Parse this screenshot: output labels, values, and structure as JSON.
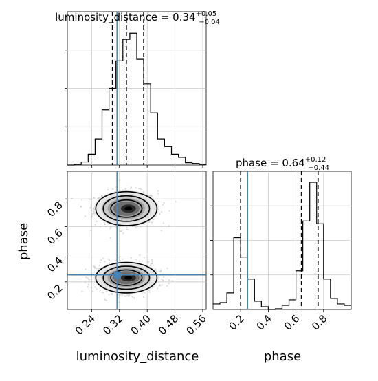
{
  "chart_data": {
    "type": "corner",
    "parameters": [
      "luminosity_distance",
      "phase"
    ],
    "truths": {
      "luminosity_distance": 0.313,
      "phase": 0.25
    },
    "panels": [
      {
        "id": "ld-hist",
        "type": "histogram",
        "title_name": "luminosity_distance",
        "title_median": "0.34",
        "title_plus": "+0.05",
        "title_minus": "−0.04",
        "xlim": [
          0.17,
          0.57
        ],
        "ylim": [
          0,
          1.0
        ],
        "bin_edges": [
          0.17,
          0.19,
          0.21,
          0.23,
          0.25,
          0.27,
          0.29,
          0.31,
          0.33,
          0.35,
          0.37,
          0.39,
          0.41,
          0.43,
          0.45,
          0.47,
          0.49,
          0.51,
          0.53,
          0.55,
          0.57
        ],
        "counts": [
          0.0,
          0.005,
          0.02,
          0.07,
          0.17,
          0.36,
          0.5,
          0.68,
          0.82,
          0.86,
          0.69,
          0.53,
          0.34,
          0.17,
          0.12,
          0.07,
          0.05,
          0.015,
          0.01,
          0.005
        ],
        "quantile_lines": [
          0.3,
          0.34,
          0.39
        ],
        "truth": 0.313
      },
      {
        "id": "phase-hist",
        "type": "histogram",
        "title_name": "phase",
        "title_median": "0.64",
        "title_plus": "+0.12",
        "title_minus": "−0.44",
        "xticks": [
          "0.2",
          "0.4",
          "0.6",
          "0.8"
        ],
        "xlabel": "phase",
        "xlim": [
          0.0,
          1.0
        ],
        "ylim": [
          0,
          1.0
        ],
        "bin_edges": [
          0.0,
          0.05,
          0.1,
          0.15,
          0.2,
          0.25,
          0.3,
          0.35,
          0.4,
          0.45,
          0.5,
          0.55,
          0.6,
          0.65,
          0.7,
          0.75,
          0.8,
          0.85,
          0.9,
          0.95,
          1.0
        ],
        "counts": [
          0.04,
          0.05,
          0.12,
          0.52,
          0.38,
          0.22,
          0.06,
          0.02,
          0.0,
          0.005,
          0.03,
          0.07,
          0.28,
          0.64,
          0.92,
          0.62,
          0.22,
          0.08,
          0.04,
          0.03
        ],
        "quantile_lines": [
          0.2,
          0.64,
          0.76
        ],
        "truth": 0.25
      },
      {
        "id": "joint",
        "type": "2d-density",
        "xlabel": "luminosity_distance",
        "ylabel": "phase",
        "xticks": [
          "0.24",
          "0.32",
          "0.40",
          "0.48",
          "0.56"
        ],
        "yticks": [
          "0.2",
          "0.4",
          "0.6",
          "0.8"
        ],
        "xlim": [
          0.17,
          0.57
        ],
        "ylim": [
          0.0,
          1.0
        ],
        "modes": [
          {
            "x": 0.34,
            "y": 0.73,
            "sx": 0.036,
            "sy": 0.05
          },
          {
            "x": 0.34,
            "y": 0.23,
            "sx": 0.036,
            "sy": 0.045
          }
        ],
        "truth": {
          "x": 0.313,
          "y": 0.25
        }
      }
    ],
    "grid": true,
    "colors": {
      "truth": "#4682b4",
      "line": "#000000",
      "grid": "#c8c8c8",
      "scatter": "#bdbdbd"
    }
  }
}
